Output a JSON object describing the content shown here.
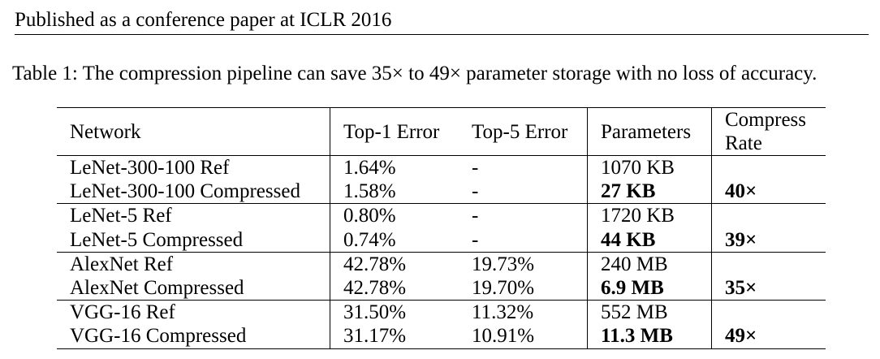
{
  "header": {
    "text": "Published as a conference paper at ICLR 2016"
  },
  "caption": {
    "text": "Table 1: The compression pipeline can save 35× to 49× parameter storage with no loss of accuracy."
  },
  "table": {
    "columns": {
      "network": "Network",
      "top1": "Top-1 Error",
      "top5": "Top-5 Error",
      "params": "Parameters",
      "rate_line1": "Compress",
      "rate_line2": "Rate"
    },
    "groups": [
      {
        "ref": {
          "network": "LeNet-300-100 Ref",
          "top1": "1.64%",
          "top5": "-",
          "params": "1070 KB"
        },
        "comp": {
          "network": "LeNet-300-100 Compressed",
          "top1": "1.58%",
          "top5": "-",
          "params": "27 KB",
          "rate": "40×"
        }
      },
      {
        "ref": {
          "network": "LeNet-5 Ref",
          "top1": "0.80%",
          "top5": "-",
          "params": "1720 KB"
        },
        "comp": {
          "network": "LeNet-5 Compressed",
          "top1": "0.74%",
          "top5": "-",
          "params": "44 KB",
          "rate": "39×"
        }
      },
      {
        "ref": {
          "network": "AlexNet Ref",
          "top1": "42.78%",
          "top5": "19.73%",
          "params": "240 MB"
        },
        "comp": {
          "network": "AlexNet Compressed",
          "top1": "42.78%",
          "top5": "19.70%",
          "params": "6.9 MB",
          "rate": "35×"
        }
      },
      {
        "ref": {
          "network": "VGG-16 Ref",
          "top1": "31.50%",
          "top5": "11.32%",
          "params": "552 MB"
        },
        "comp": {
          "network": "VGG-16 Compressed",
          "top1": "31.17%",
          "top5": "10.91%",
          "params": "11.3 MB",
          "rate": "49×"
        }
      }
    ]
  }
}
